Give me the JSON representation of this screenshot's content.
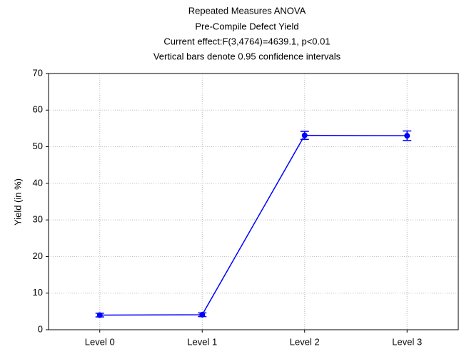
{
  "chart_data": {
    "type": "line",
    "title": "Repeated Measures ANOVA",
    "subtitle": [
      "Pre-Compile Defect Yield",
      "Current effect:F(3,4764)=4639.1, p<0.01",
      "Vertical bars denote 0.95 confidence intervals"
    ],
    "y_label": "Yield (in %)",
    "categories": [
      "Level 0",
      "Level 1",
      "Level 2",
      "Level 3"
    ],
    "series": [
      {
        "color": "#0000ff",
        "values": [
          4.0,
          4.1,
          53.1,
          53.0
        ],
        "errors": [
          0.5,
          0.5,
          1.1,
          1.3
        ]
      }
    ],
    "ylim": [
      0,
      70
    ],
    "yticks": [
      0,
      10,
      20,
      30,
      40,
      50,
      60,
      70
    ],
    "grid": true
  }
}
